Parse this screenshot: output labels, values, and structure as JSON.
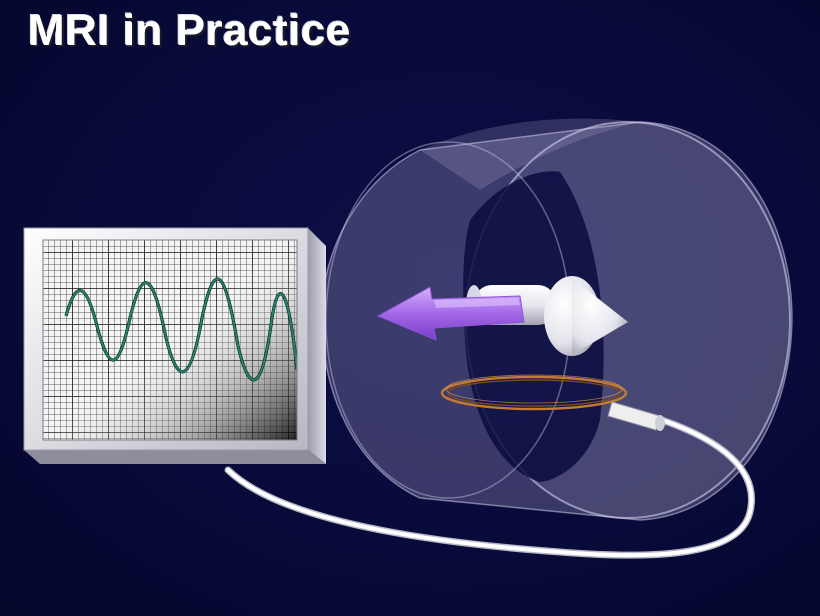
{
  "title": "MRI in Practice",
  "colors": {
    "background": "#080a3a",
    "cylinder": "#b6b1d8",
    "arrow": "#a468e8",
    "coil": "#c47a30",
    "trace": "#1e9a7c",
    "cable": "#f2f2f2"
  },
  "icons": {
    "scanner": "cylinder-bore",
    "vector": "magnetization-arrow",
    "coil": "receiver-coil-loop",
    "monitor": "oscilloscope-screen"
  }
}
